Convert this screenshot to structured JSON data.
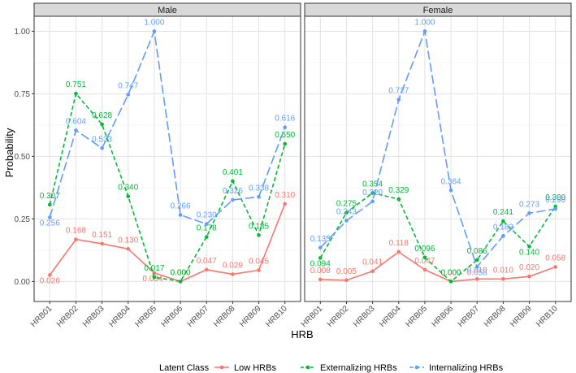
{
  "chart_data": {
    "type": "line",
    "xlabel": "HRB",
    "ylabel": "Probability",
    "ylim": [
      -0.08,
      1.06
    ],
    "y_ticks": [
      "0.00",
      "0.25",
      "0.50",
      "0.75",
      "1.00"
    ],
    "y_tick_values": [
      0,
      0.25,
      0.5,
      0.75,
      1.0
    ],
    "categories": [
      "HRB01",
      "HRB02",
      "HRB03",
      "HRB04",
      "HRB05",
      "HRB06",
      "HRB07",
      "HRB08",
      "HRB09",
      "HRB10"
    ],
    "legend": {
      "title": "Latent Class",
      "position": "bottom",
      "entries": [
        "Low HRBs",
        "Externalizing HRBs",
        "Internalizing HRBs"
      ]
    },
    "colors": {
      "Low HRBs": "#F8766D",
      "Externalizing HRBs": "#00BA38",
      "Internalizing HRBs": "#619CFF"
    },
    "panels": [
      {
        "title": "Male",
        "series": [
          {
            "name": "Low HRBs",
            "values": [
              0.026,
              0.168,
              0.151,
              0.13,
              0.034,
              0.0,
              0.047,
              0.029,
              0.045,
              0.31
            ],
            "labels": [
              "0.026",
              "0.168",
              "0.151",
              "0.130",
              "0.034",
              "0.000",
              "0.047",
              "0.029",
              "0.045",
              "0.310"
            ]
          },
          {
            "name": "Externalizing HRBs",
            "values": [
              0.307,
              0.751,
              0.628,
              0.34,
              0.017,
              0.0,
              0.178,
              0.401,
              0.185,
              0.55
            ],
            "labels": [
              "0.307",
              "0.751",
              "0.628",
              "0.340",
              "0.017",
              "0.000",
              "0.178",
              "0.401",
              "0.185",
              "0.550"
            ]
          },
          {
            "name": "Internalizing HRBs",
            "values": [
              0.256,
              0.604,
              0.533,
              0.747,
              1.0,
              0.266,
              0.23,
              0.326,
              0.338,
              0.616
            ],
            "labels": [
              "0.256",
              "0.604",
              "0.533",
              "0.747",
              "1.000",
              "0.266",
              "0.230",
              "0.326",
              "0.338",
              "0.616"
            ]
          }
        ]
      },
      {
        "title": "Female",
        "series": [
          {
            "name": "Low HRBs",
            "values": [
              0.008,
              0.005,
              0.041,
              0.118,
              0.047,
              0.0,
              0.01,
              0.01,
              0.02,
              0.058
            ],
            "labels": [
              "0.008",
              "0.005",
              "0.041",
              "0.118",
              "0.047",
              "0.000",
              "0.010",
              "0.010",
              "0.020",
              "0.058"
            ]
          },
          {
            "name": "Externalizing HRBs",
            "values": [
              0.094,
              0.275,
              0.354,
              0.329,
              0.096,
              0.0,
              0.086,
              0.241,
              0.14,
              0.3
            ],
            "labels": [
              "0.094",
              "0.275",
              "0.354",
              "0.329",
              "0.096",
              "0.000",
              "0.086",
              "0.241",
              "0.140",
              "0.300"
            ]
          },
          {
            "name": "Internalizing HRBs",
            "values": [
              0.135,
              0.243,
              0.32,
              0.727,
              1.0,
              0.364,
              0.058,
              0.182,
              0.273,
              0.29
            ],
            "labels": [
              "0.135",
              "0.243",
              "0.320",
              "0.727",
              "1.000",
              "0.364",
              "0.058",
              "0.182",
              "0.273",
              "0.290"
            ]
          }
        ]
      }
    ]
  }
}
